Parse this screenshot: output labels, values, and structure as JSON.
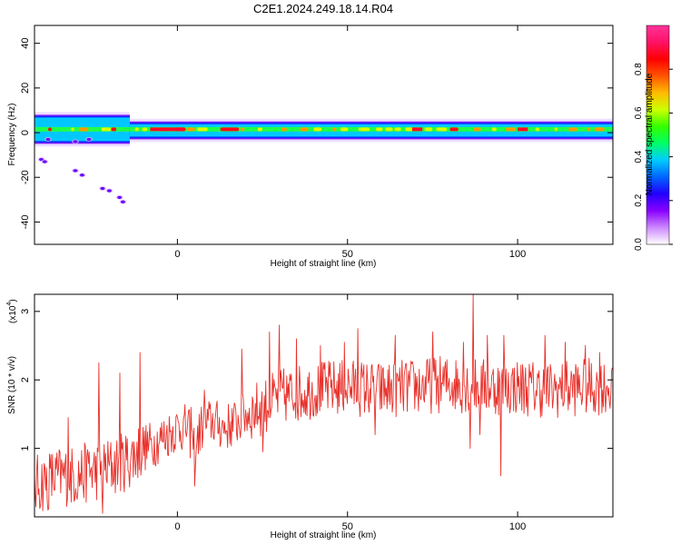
{
  "figure": {
    "title": "C2E1.2024.249.18.14.R04"
  },
  "colors": {
    "snr_line": "#e8312b"
  },
  "chart_data": [
    {
      "type": "heatmap",
      "title": "C2E1.2024.249.18.14.R04",
      "xlabel": "Height of straight line (km)",
      "ylabel": "Frequency (Hz)",
      "xlim": [
        -42,
        128
      ],
      "ylim": [
        -50,
        48
      ],
      "xticks": [
        0,
        50,
        100
      ],
      "yticks": [
        -40,
        -20,
        0,
        20,
        40
      ],
      "colorbar": {
        "label": "Normalized spectral amplitude",
        "range": [
          0,
          1
        ],
        "ticks": [
          "0.0",
          "0.2",
          "0.4",
          "0.6",
          "0.8"
        ],
        "colors": [
          "#ffffff",
          "#cc88ff",
          "#8800ff",
          "#2200ff",
          "#0066ff",
          "#00ccff",
          "#00ff66",
          "#33ff00",
          "#ccff00",
          "#ffbb00",
          "#ff5500",
          "#ff0000",
          "#ff1166",
          "#ff3399"
        ]
      },
      "ridge_frequency_hz": 1.5,
      "spread_segments": [
        {
          "x_start": -42,
          "x_end": -14,
          "hz_min": -5,
          "hz_max": 8
        },
        {
          "x_start": -14,
          "x_end": 128,
          "hz_min": -3,
          "hz_max": 5
        }
      ],
      "scatter_blobs": [
        {
          "x": -40,
          "hz": -12
        },
        {
          "x": -39,
          "hz": -13
        },
        {
          "x": -30,
          "hz": -17
        },
        {
          "x": -28,
          "hz": -19
        },
        {
          "x": -22,
          "hz": -25
        },
        {
          "x": -20,
          "hz": -26
        },
        {
          "x": -17,
          "hz": -29
        },
        {
          "x": -16,
          "hz": -31
        },
        {
          "x": -38,
          "hz": -3
        },
        {
          "x": -30,
          "hz": -4
        },
        {
          "x": -26,
          "hz": -3
        }
      ]
    },
    {
      "type": "line",
      "xlabel": "Height of straight line (km)",
      "ylabel": "SNR (10 * v/v)",
      "y_multiplier": "(x10",
      "y_multiplier_exp": "4",
      "xlim": [
        -42,
        128
      ],
      "ylim": [
        0,
        3.25
      ],
      "xticks": [
        0,
        50,
        100
      ],
      "yticks": [
        1,
        2,
        3
      ],
      "series": [
        {
          "color": "#e8312b",
          "anchors": [
            [
              -42,
              0.45
            ],
            [
              -38,
              0.55
            ],
            [
              -34,
              0.6
            ],
            [
              -30,
              0.6
            ],
            [
              -26,
              0.65
            ],
            [
              -22,
              0.7
            ],
            [
              -18,
              0.75
            ],
            [
              -14,
              0.85
            ],
            [
              -10,
              1.0
            ],
            [
              -6,
              1.1
            ],
            [
              -3,
              1.2
            ],
            [
              0,
              1.3
            ],
            [
              3,
              1.3
            ],
            [
              5,
              1.0
            ],
            [
              7,
              1.3
            ],
            [
              10,
              1.4
            ],
            [
              14,
              1.3
            ],
            [
              18,
              1.4
            ],
            [
              20,
              1.5
            ],
            [
              25,
              1.6
            ],
            [
              30,
              1.75
            ],
            [
              35,
              1.8
            ],
            [
              40,
              1.85
            ],
            [
              50,
              1.9
            ],
            [
              60,
              1.85
            ],
            [
              70,
              1.9
            ],
            [
              80,
              1.95
            ],
            [
              90,
              1.9
            ],
            [
              100,
              1.9
            ],
            [
              110,
              1.85
            ],
            [
              120,
              1.9
            ],
            [
              128,
              1.9
            ]
          ],
          "spikes": [
            [
              -38,
              0.1
            ],
            [
              -32,
              1.45
            ],
            [
              -26,
              0.95
            ],
            [
              -23,
              2.25
            ],
            [
              -22,
              0.05
            ],
            [
              -17,
              2.1
            ],
            [
              -11,
              2.4
            ],
            [
              4,
              1.6
            ],
            [
              5,
              0.45
            ],
            [
              8,
              1.85
            ],
            [
              19,
              2.45
            ],
            [
              25,
              0.95
            ],
            [
              27,
              2.7
            ],
            [
              30,
              2.8
            ],
            [
              35,
              2.6
            ],
            [
              42,
              2.5
            ],
            [
              49,
              2.55
            ],
            [
              53,
              2.75
            ],
            [
              58,
              1.2
            ],
            [
              64,
              2.65
            ],
            [
              75,
              2.7
            ],
            [
              84,
              2.55
            ],
            [
              86,
              1.0
            ],
            [
              87,
              3.25
            ],
            [
              89,
              1.2
            ],
            [
              91,
              2.65
            ],
            [
              95,
              0.6
            ],
            [
              96,
              2.65
            ],
            [
              108,
              2.65
            ],
            [
              114,
              2.55
            ],
            [
              120,
              2.5
            ],
            [
              124,
              2.4
            ]
          ]
        }
      ]
    }
  ]
}
